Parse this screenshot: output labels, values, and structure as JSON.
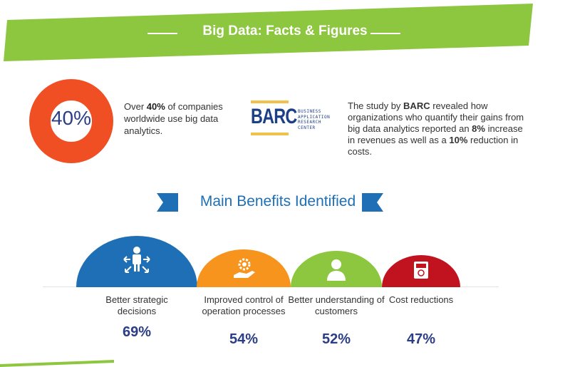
{
  "banner": {
    "title": "Big Data: Facts & Figures",
    "color": "#8dc63f"
  },
  "donut": {
    "label": "40%",
    "percent": 40,
    "color_main": "#f04e23",
    "color_part": "#fbb829"
  },
  "fact1": {
    "pre": "Over ",
    "highlight": "40%",
    "post": " of companies worldwide use big data analytics."
  },
  "barc": {
    "logo_word": "BARC",
    "logo_sub": [
      "BUSINESS",
      "APPLICATION",
      "RESEARCH",
      "CENTER"
    ]
  },
  "fact2": {
    "p1": "The study by ",
    "b1": "BARC",
    "p2": " revealed how organizations who quantify their gains from big data analytics reported an ",
    "b2": "8%",
    "p3": " increase in revenues as well as a ",
    "b3": "10%",
    "p4": " reduction in costs."
  },
  "section": {
    "title": "Main Benefits Identified",
    "ribbon_color": "#1e6fb5"
  },
  "benefits": [
    {
      "label": "Better strategic decisions",
      "value": "69%",
      "color": "#1e6fb5",
      "icon": "decision-person-icon"
    },
    {
      "label": "Improved control of operation processes",
      "value": "54%",
      "color": "#f7941d",
      "icon": "gear-hand-icon"
    },
    {
      "label": "Better understanding of customers",
      "value": "52%",
      "color": "#8dc63f",
      "icon": "customer-icon"
    },
    {
      "label": "Cost reductions",
      "value": "47%",
      "color": "#c1121f",
      "icon": "cash-register-icon"
    }
  ]
}
